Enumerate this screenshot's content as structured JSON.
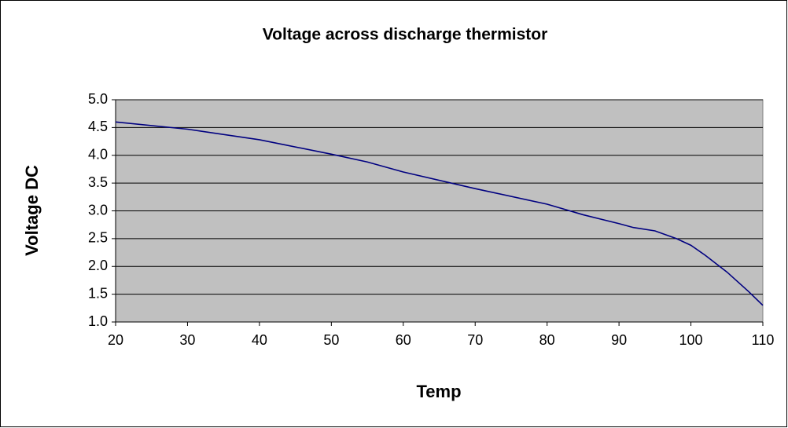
{
  "chart_data": {
    "type": "line",
    "title": "Voltage across discharge thermistor",
    "x_label": "Temp",
    "y_label": "Voltage DC",
    "x": [
      20,
      30,
      40,
      50,
      55,
      60,
      70,
      80,
      85,
      90,
      92,
      95,
      98,
      100,
      102,
      105,
      108,
      110
    ],
    "series": [
      {
        "name": "Voltage DC",
        "color": "#000080",
        "values": [
          4.6,
          4.47,
          4.28,
          4.02,
          3.88,
          3.7,
          3.4,
          3.12,
          2.93,
          2.77,
          2.7,
          2.64,
          2.5,
          2.38,
          2.2,
          1.9,
          1.55,
          1.3
        ]
      }
    ],
    "xlim": [
      20,
      110
    ],
    "xticks": [
      20,
      30,
      40,
      50,
      60,
      70,
      80,
      90,
      100,
      110
    ],
    "ylim": [
      1,
      5
    ],
    "yticks": [
      {
        "value": 1,
        "label": "1.0"
      },
      1.5,
      {
        "value": 2,
        "label": "2.0"
      },
      2.5,
      {
        "value": 3,
        "label": "3.0"
      },
      3.5,
      {
        "value": 4,
        "label": "4.0"
      },
      4.5,
      {
        "value": 5,
        "label": "5.0"
      }
    ],
    "grid": true,
    "plot_background": "#c0c0c0"
  }
}
